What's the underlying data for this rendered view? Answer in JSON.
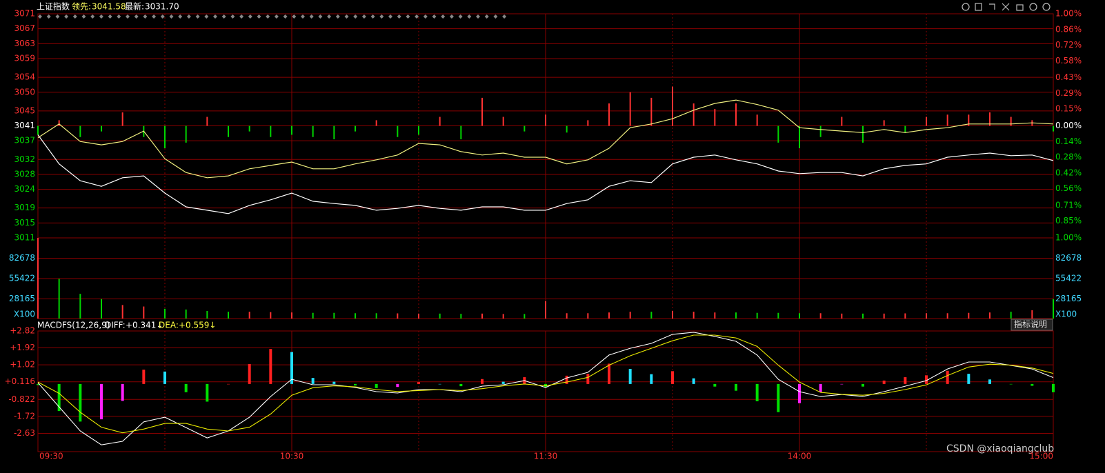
{
  "header": {
    "title": "上证指数",
    "lead_label": "领先:",
    "lead": "3041.58",
    "latest_label": "最新:",
    "latest": "3031.70"
  },
  "watermark": "CSDN @xiaoqiangclub",
  "button": "指标说明",
  "chart_data": {
    "type": "intraday",
    "categories": [
      "09:30",
      null,
      null,
      null,
      null,
      null,
      null,
      null,
      null,
      null,
      null,
      null,
      "10:30",
      null,
      null,
      null,
      null,
      null,
      null,
      null,
      null,
      null,
      null,
      null,
      "11:30",
      null,
      null,
      null,
      null,
      null,
      null,
      null,
      null,
      null,
      null,
      null,
      "14:00",
      null,
      null,
      null,
      null,
      null,
      null,
      null,
      null,
      null,
      null,
      null,
      "15:00"
    ],
    "price": {
      "ylim": [
        3011,
        3071
      ],
      "yticks": [
        3071,
        3067,
        3063,
        3059,
        3054,
        3050,
        3045,
        3041,
        3037,
        3032,
        3028,
        3024,
        3019,
        3015,
        3011
      ],
      "y2lim": [
        -1,
        1
      ],
      "y2ticks": [
        {
          "value": 1,
          "label": "1.00%"
        },
        {
          "value": 0.86,
          "label": "0.86%"
        },
        {
          "value": 0.72,
          "label": "0.72%"
        },
        {
          "value": 0.58,
          "label": "0.58%"
        },
        {
          "value": 0.43,
          "label": "0.43%"
        },
        {
          "value": 0.29,
          "label": "0.29%"
        },
        {
          "value": 0.15,
          "label": "0.15%"
        },
        {
          "value": 0,
          "label": "0.00%"
        },
        {
          "value": -0.14,
          "label": "0.14%"
        },
        {
          "value": -0.28,
          "label": "0.28%"
        },
        {
          "value": -0.42,
          "label": "0.42%"
        },
        {
          "value": -0.56,
          "label": "0.56%"
        },
        {
          "value": -0.71,
          "label": "0.71%"
        },
        {
          "value": -0.85,
          "label": "0.85%"
        },
        {
          "value": -1,
          "label": "1.00%"
        }
      ],
      "series": [
        {
          "color": "#ffffff",
          "values": [
            3038.6,
            3030.8,
            3026.3,
            3024.8,
            3027.1,
            3027.6,
            3023.0,
            3019.3,
            3018.4,
            3017.5,
            3019.7,
            3021.2,
            3023.0,
            3020.8,
            3020.2,
            3019.7,
            3018.4,
            3018.9,
            3019.7,
            3018.9,
            3018.4,
            3019.3,
            3019.3,
            3018.4,
            3018.4,
            3020.2,
            3021.2,
            3024.8,
            3026.3,
            3025.8,
            3030.8,
            3032.6,
            3033.2,
            3031.9,
            3030.8,
            3028.9,
            3028.2,
            3028.5,
            3028.5,
            3027.6,
            3029.5,
            3030.4,
            3030.8,
            3032.6,
            3033.2,
            3033.7,
            3033.0,
            3033.2,
            3031.7
          ]
        },
        {
          "color": "#f0f080",
          "values": [
            3037.8,
            3041.5,
            3036.8,
            3035.9,
            3036.8,
            3039.6,
            3032.2,
            3028.5,
            3027.1,
            3027.6,
            3029.5,
            3030.4,
            3031.3,
            3029.5,
            3029.5,
            3030.8,
            3031.9,
            3033.2,
            3036.3,
            3035.9,
            3034.1,
            3033.2,
            3033.7,
            3032.6,
            3032.6,
            3030.8,
            3031.9,
            3035.0,
            3040.5,
            3041.5,
            3042.9,
            3045.2,
            3047.0,
            3047.9,
            3046.7,
            3045.2,
            3040.5,
            3040.0,
            3039.6,
            3039.2,
            3040.0,
            3039.2,
            3040.0,
            3040.5,
            3041.5,
            3041.5,
            3041.5,
            3041.8,
            3041.5
          ]
        }
      ],
      "bars": {
        "axis": "y2",
        "up_color": "#ff3232",
        "down_color": "#00d600",
        "values": [
          -0.08,
          0.05,
          -0.1,
          -0.05,
          0.12,
          -0.1,
          -0.2,
          -0.15,
          0.08,
          -0.1,
          -0.05,
          -0.1,
          -0.08,
          -0.1,
          -0.12,
          -0.05,
          0.05,
          -0.1,
          -0.08,
          0.08,
          -0.12,
          0.25,
          0.08,
          -0.05,
          0.1,
          -0.06,
          0.05,
          0.2,
          0.3,
          0.25,
          0.35,
          0.2,
          0.15,
          0.2,
          0.1,
          -0.15,
          -0.2,
          -0.1,
          0.08,
          -0.15,
          0.05,
          -0.06,
          0.08,
          0.1,
          0.1,
          0.12,
          0.08,
          0.05,
          -0.05
        ]
      }
    },
    "volume": {
      "ylim": [
        0,
        110000
      ],
      "yticks": [
        82678,
        55422,
        28165
      ],
      "unit": "X100",
      "up_color": "#ff3232",
      "down_color": "#00d600",
      "values": [
        110000,
        55000,
        35000,
        28000,
        20000,
        18000,
        15000,
        14000,
        12000,
        11000,
        11000,
        10500,
        10000,
        9500,
        9500,
        9000,
        9000,
        8800,
        8500,
        8500,
        8200,
        8500,
        8000,
        8000,
        25000,
        9000,
        9000,
        10000,
        11000,
        11000,
        12000,
        11000,
        10000,
        10000,
        9500,
        9500,
        9000,
        9000,
        8500,
        8500,
        8500,
        8800,
        9000,
        9000,
        9500,
        10000,
        11000,
        13000,
        28000
      ]
    },
    "macd": {
      "name": "MACDFS(12,26,9)",
      "diff_label": "DIFF:",
      "diff": "+0.341↓",
      "dea_label": "DEA:",
      "dea": "+0.559↓",
      "ylim": [
        -3.6,
        2.82
      ],
      "yticks": [
        {
          "value": 2.82,
          "label": "+2.82"
        },
        {
          "value": 1.92,
          "label": "+1.92"
        },
        {
          "value": 1.02,
          "label": "+1.02"
        },
        {
          "value": 0.116,
          "label": "+0.116"
        },
        -0.822,
        -1.72,
        -2.63
      ],
      "series": [
        {
          "color": "#ffffff",
          "values": [
            0.07,
            -1.22,
            -2.5,
            -3.24,
            -3.05,
            -2.02,
            -1.77,
            -2.32,
            -2.87,
            -2.5,
            -1.77,
            -0.67,
            0.25,
            -0.04,
            -0.04,
            -0.19,
            -0.41,
            -0.48,
            -0.3,
            -0.3,
            -0.41,
            -0.12,
            -0.04,
            0.18,
            -0.19,
            0.32,
            0.62,
            1.54,
            1.9,
            2.16,
            2.64,
            2.75,
            2.53,
            2.27,
            1.54,
            0.25,
            -0.41,
            -0.67,
            -0.56,
            -0.67,
            -0.41,
            -0.12,
            0.18,
            0.8,
            1.17,
            1.17,
            0.99,
            0.8,
            0.34
          ]
        },
        {
          "color": "#e8e800",
          "values": [
            0.1,
            -0.5,
            -1.5,
            -2.3,
            -2.6,
            -2.4,
            -2.1,
            -2.1,
            -2.4,
            -2.5,
            -2.3,
            -1.6,
            -0.6,
            -0.2,
            -0.1,
            -0.15,
            -0.3,
            -0.4,
            -0.35,
            -0.3,
            -0.35,
            -0.25,
            -0.1,
            0.0,
            -0.1,
            0.1,
            0.35,
            1.0,
            1.5,
            1.9,
            2.3,
            2.6,
            2.6,
            2.45,
            2.0,
            1.0,
            0.1,
            -0.45,
            -0.55,
            -0.6,
            -0.5,
            -0.3,
            -0.05,
            0.45,
            0.9,
            1.05,
            1.0,
            0.85,
            0.56
          ]
        }
      ],
      "histogram": {
        "colors": [
          "#ff2020",
          "#20e0ff",
          "#00e000",
          "#ff20ff"
        ],
        "values": [
          -0.06,
          -1.44,
          -2.0,
          -1.88,
          -0.9,
          0.76,
          0.66,
          -0.44,
          -0.94,
          0,
          1.06,
          1.86,
          1.7,
          0.32,
          0.12,
          -0.08,
          -0.22,
          -0.16,
          0.1,
          0,
          -0.12,
          0.26,
          0.12,
          0.36,
          -0.18,
          0.44,
          0.54,
          1.08,
          0.8,
          0.52,
          0.68,
          0.3,
          -0.14,
          -0.36,
          -0.92,
          -1.5,
          -1.02,
          -0.44,
          -0.02,
          -0.14,
          0.18,
          0.36,
          0.46,
          0.7,
          0.54,
          0.24,
          -0.02,
          -0.1,
          -0.44
        ]
      }
    }
  }
}
